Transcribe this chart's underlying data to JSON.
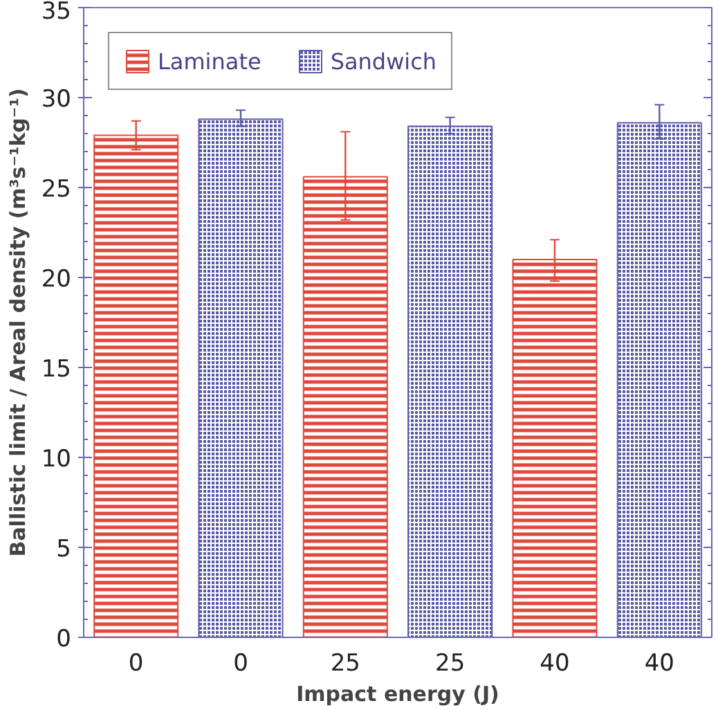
{
  "chart_data": {
    "type": "bar",
    "xlabel": "Impact energy (J)",
    "ylabel": "Ballistic limit / Areal density (m³s⁻¹kg⁻¹)",
    "categories": [
      "0",
      "0",
      "25",
      "25",
      "40",
      "40"
    ],
    "series": [
      {
        "name": "Laminate",
        "color": "#e0483c",
        "values": [
          27.9,
          null,
          25.6,
          null,
          21.0,
          null
        ],
        "errors": [
          [
            27.1,
            28.7
          ],
          null,
          [
            23.2,
            28.1
          ],
          null,
          [
            19.8,
            22.1
          ],
          null
        ]
      },
      {
        "name": "Sandwich",
        "color": "#5a5aa8",
        "values": [
          null,
          28.8,
          null,
          28.4,
          null,
          28.6
        ],
        "errors": [
          null,
          [
            28.4,
            29.3
          ],
          null,
          [
            28.0,
            28.9
          ],
          null,
          [
            27.7,
            29.6
          ]
        ]
      }
    ],
    "ylim": [
      0,
      35
    ],
    "yticks": [
      0,
      5,
      10,
      15,
      20,
      25,
      30,
      35
    ],
    "grid": false,
    "legend": "top left"
  }
}
